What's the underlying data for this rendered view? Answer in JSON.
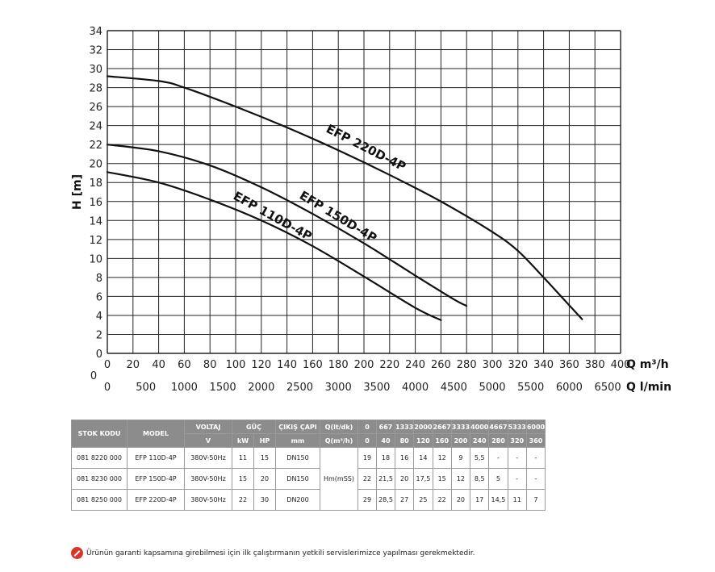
{
  "chart_data": {
    "type": "line",
    "ylabel": "H [m]",
    "xlabel": "Q m³/h",
    "xlabel2": "Q l/min",
    "xlim": [
      0,
      400
    ],
    "ylim": [
      0,
      34
    ],
    "grid": true,
    "x_ticks": [
      "0",
      "20",
      "40",
      "60",
      "80",
      "100",
      "120",
      "140",
      "160",
      "180",
      "200",
      "220",
      "240",
      "260",
      "280",
      "300",
      "320",
      "340",
      "360",
      "380",
      "400"
    ],
    "y_ticks": [
      "0",
      "2",
      "4",
      "6",
      "8",
      "10",
      "12",
      "14",
      "16",
      "18",
      "20",
      "22",
      "24",
      "26",
      "28",
      "30",
      "32",
      "34"
    ],
    "x2_ticks": [
      "0",
      "500",
      "1000",
      "1500",
      "2000",
      "2500",
      "3000",
      "3500",
      "4000",
      "4500",
      "5000",
      "5500",
      "6000",
      "6500"
    ],
    "x2_label_zero": "0",
    "series": [
      {
        "name": "EFP 220D-4P",
        "x": [
          0,
          40,
          60,
          100,
          140,
          180,
          220,
          260,
          300,
          320,
          340,
          355,
          370
        ],
        "y": [
          29.2,
          28.7,
          28.0,
          26.0,
          23.8,
          21.4,
          18.8,
          16.0,
          12.8,
          10.8,
          8.0,
          5.8,
          3.6
        ]
      },
      {
        "name": "EFP 150D-4P",
        "x": [
          0,
          40,
          80,
          120,
          160,
          200,
          240,
          270,
          280
        ],
        "y": [
          22.0,
          21.3,
          19.8,
          17.5,
          14.7,
          11.6,
          8.2,
          5.7,
          5.0
        ]
      },
      {
        "name": "EFP 110D-4P",
        "x": [
          0,
          40,
          80,
          120,
          160,
          200,
          240,
          260
        ],
        "y": [
          19.1,
          18.0,
          16.2,
          14.0,
          11.3,
          8.1,
          4.8,
          3.5
        ]
      }
    ]
  },
  "table": {
    "headers": {
      "stock_code": "STOK KODU",
      "model": "MODEL",
      "voltage": "VOLTAJ",
      "power": "GÜÇ",
      "outlet": "ÇIKIŞ ÇAPI",
      "q_lt": "Q(lt/dk)",
      "voltage_unit": "V",
      "kw": "kW",
      "hp": "HP",
      "outlet_unit": "mm",
      "q_m3": "Q(m³/h)"
    },
    "q_lt_values": [
      "0",
      "667",
      "1333",
      "2000",
      "2667",
      "3333",
      "4000",
      "4667",
      "5333",
      "6000"
    ],
    "q_m3_values": [
      "0",
      "40",
      "80",
      "120",
      "160",
      "200",
      "240",
      "280",
      "320",
      "360"
    ],
    "head_label": "Hm(mSS)",
    "rows": [
      {
        "stock": "081 8220 000",
        "model": "EFP 110D-4P",
        "voltage": "380V-50Hz",
        "kw": "11",
        "hp": "15",
        "outlet": "DN150",
        "heads": [
          "19",
          "18",
          "16",
          "14",
          "12",
          "9",
          "5,5",
          "-",
          "-",
          "-"
        ]
      },
      {
        "stock": "081 8230 000",
        "model": "EFP 150D-4P",
        "voltage": "380V-50Hz",
        "kw": "15",
        "hp": "20",
        "outlet": "DN150",
        "heads": [
          "22",
          "21,5",
          "20",
          "17,5",
          "15",
          "12",
          "8,5",
          "5",
          "-",
          "-"
        ]
      },
      {
        "stock": "081 8250 000",
        "model": "EFP 220D-4P",
        "voltage": "380V-50Hz",
        "kw": "22",
        "hp": "30",
        "outlet": "DN200",
        "heads": [
          "29",
          "28,5",
          "27",
          "25",
          "22",
          "20",
          "17",
          "14,5",
          "11",
          "7"
        ]
      }
    ]
  },
  "footnote": "Ürünün garanti kapsamına girebilmesi için ilk çalıştırmanın yetkili servislerimizce yapılması gerekmektedir.",
  "icons": {
    "footnote_icon": "no-entry-icon",
    "footnote_icon_color": "#d9362b"
  }
}
